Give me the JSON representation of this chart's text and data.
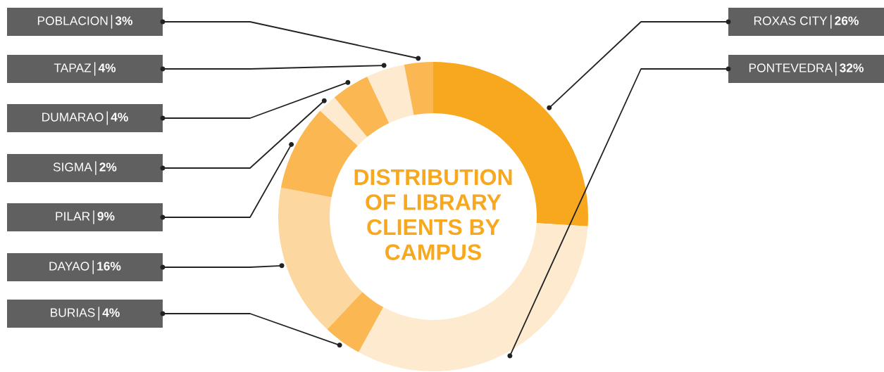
{
  "chart_data": {
    "type": "donut",
    "title": "DISTRIBUTION\nOF LIBRARY\nCLIENTS BY\nCAMPUS",
    "categories": [
      "ROXAS CITY",
      "PONTEVEDRA",
      "BURIAS",
      "DAYAO",
      "PILAR",
      "SIGMA",
      "DUMARAO",
      "TAPAZ",
      "POBLACION"
    ],
    "values": [
      26,
      32,
      4,
      16,
      9,
      2,
      4,
      4,
      3
    ],
    "colors": [
      "#f7a81e",
      "#fdeacf",
      "#fbb852",
      "#fcd8a0",
      "#fbb852",
      "#fdeacf",
      "#fbb852",
      "#fdeacf",
      "#fbb852"
    ],
    "value_labels": [
      "26%",
      "32%",
      "4%",
      "16%",
      "9%",
      "2%",
      "4%",
      "4%",
      "3%"
    ]
  }
}
